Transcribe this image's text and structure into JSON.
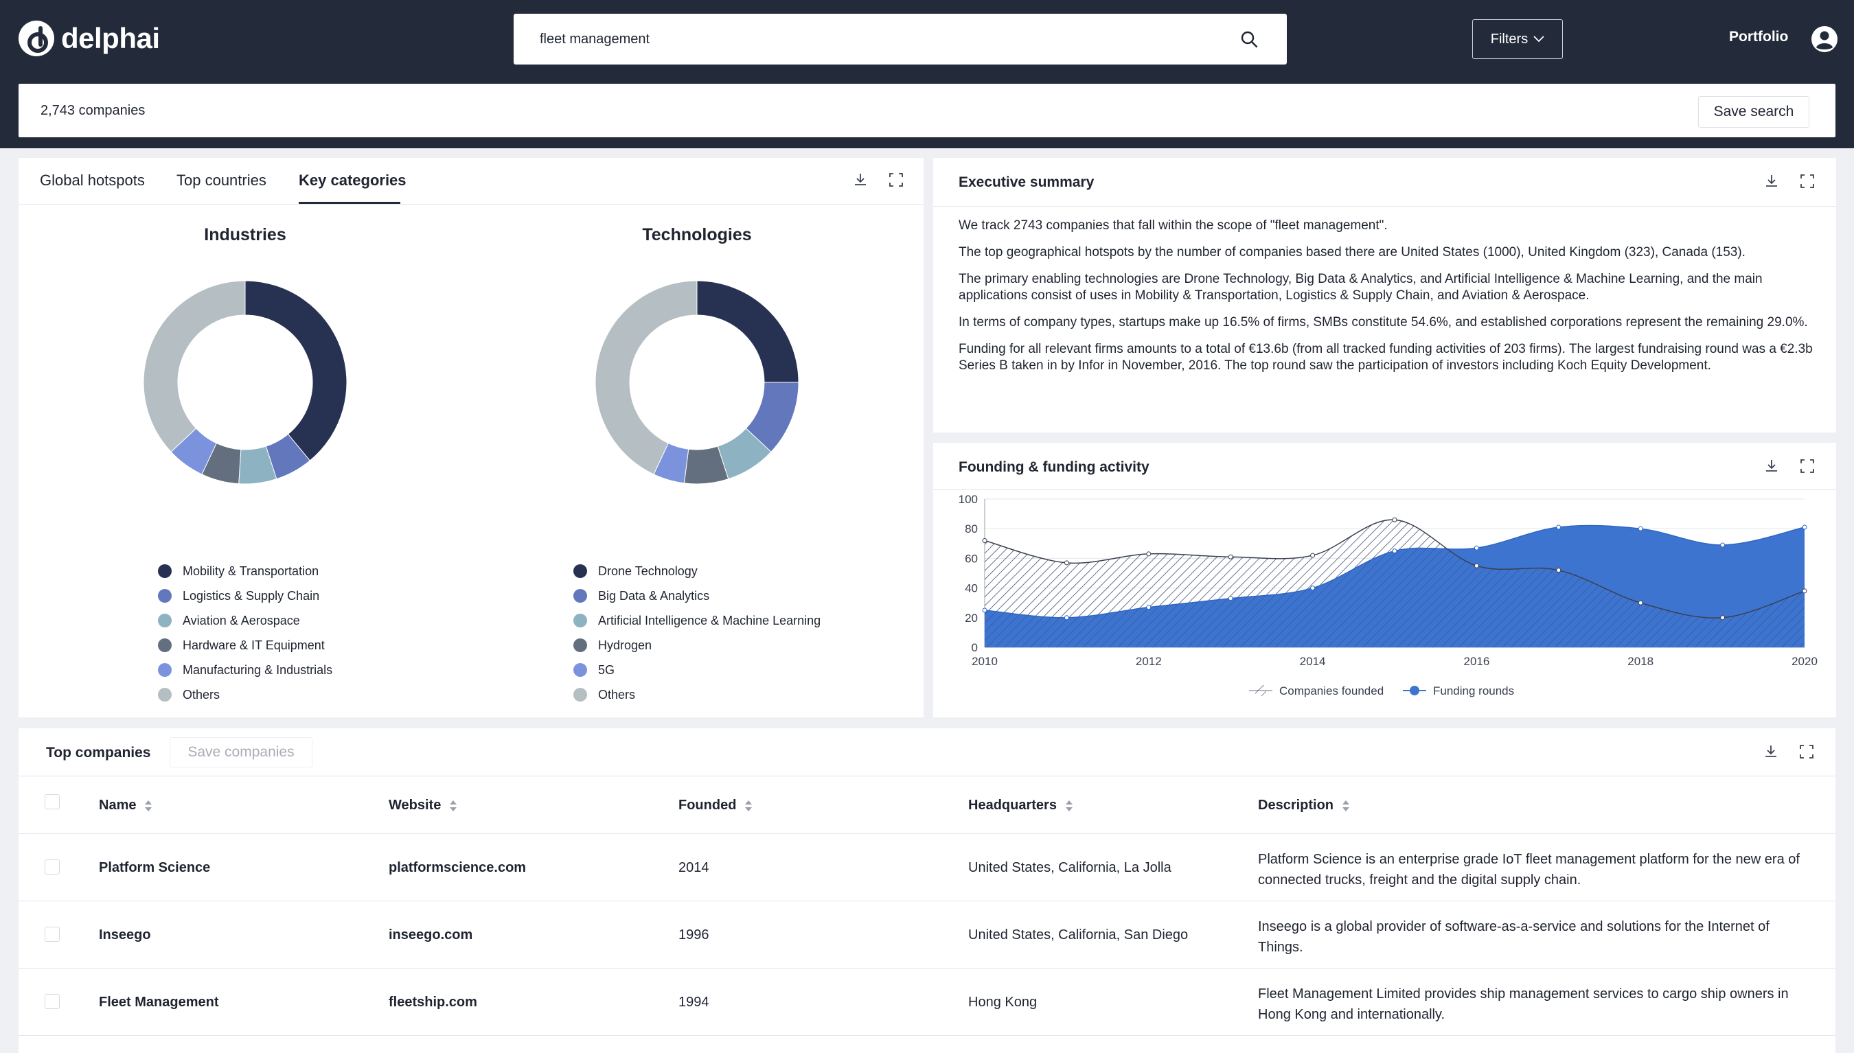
{
  "app": {
    "logo_text": "delphai"
  },
  "search": {
    "query": "fleet management",
    "placeholder": ""
  },
  "header": {
    "filters_label": "Filters",
    "portfolio_label": "Portfolio"
  },
  "results": {
    "count_text": "2,743 companies",
    "save_search_label": "Save search"
  },
  "categories_panel": {
    "tabs": [
      "Global hotspots",
      "Top countries",
      "Key categories"
    ],
    "active_tab": "Key categories",
    "industries": {
      "title": "Industries",
      "legend": [
        "Mobility & Transportation",
        "Logistics & Supply Chain",
        "Aviation & Aerospace",
        "Hardware & IT Equipment",
        "Manufacturing & Industrials",
        "Others"
      ],
      "colors": [
        "#273152",
        "#6377bd",
        "#8db2c2",
        "#636e7e",
        "#7b93dd",
        "#b5bec3"
      ],
      "values": [
        39,
        6,
        6,
        6,
        6,
        37
      ]
    },
    "technologies": {
      "title": "Technologies",
      "legend": [
        "Drone Technology",
        "Big Data & Analytics",
        "Artificial Intelligence & Machine Learning",
        "Hydrogen",
        "5G",
        "Others"
      ],
      "colors": [
        "#273152",
        "#6377bd",
        "#8db2c2",
        "#636e7e",
        "#7b93dd",
        "#b5bec3"
      ],
      "values": [
        25,
        12,
        8,
        7,
        5,
        43
      ]
    }
  },
  "executive_summary": {
    "title": "Executive summary",
    "paragraphs": [
      "We track 2743 companies that fall within the scope of \"fleet management\".",
      "The top geographical hotspots by the number of companies based there are United States (1000), United Kingdom (323), Canada (153).",
      "The primary enabling technologies are Drone Technology, Big Data & Analytics, and Artificial Intelligence & Machine Learning, and the main applications consist of uses in Mobility & Transportation, Logistics & Supply Chain, and Aviation & Aerospace.",
      "In terms of company types, startups make up 16.5% of firms, SMBs constitute 54.6%, and established corporations represent the remaining 29.0%.",
      "Funding for all relevant firms amounts to a total of €13.6b (from all tracked funding activities of 203 firms). The largest fundraising round was a €2.3b Series B taken in by Infor in November, 2016. The top round saw the participation of investors including Koch Equity Development."
    ]
  },
  "funding_chart": {
    "title": "Founding & funding activity",
    "chart_data": {
      "type": "area",
      "x": [
        2010,
        2011,
        2012,
        2013,
        2014,
        2015,
        2016,
        2017,
        2018,
        2019,
        2020
      ],
      "xticks": [
        2010,
        2012,
        2014,
        2016,
        2018,
        2020
      ],
      "yticks": [
        0,
        20,
        40,
        60,
        80,
        100
      ],
      "ylim": [
        0,
        100
      ],
      "series": [
        {
          "name": "Companies founded",
          "values": [
            72,
            57,
            63,
            61,
            62,
            86,
            55,
            52,
            30,
            20,
            38
          ],
          "style": "hatched"
        },
        {
          "name": "Funding rounds",
          "values": [
            25,
            20,
            27,
            33,
            40,
            65,
            67,
            81,
            80,
            69,
            81
          ],
          "color": "#3d74cf"
        }
      ]
    }
  },
  "companies": {
    "title": "Top companies",
    "save_label": "Save companies",
    "columns": [
      "Name",
      "Website",
      "Founded",
      "Headquarters",
      "Description"
    ],
    "rows": [
      {
        "name": "Platform Science",
        "website": "platformscience.com",
        "founded": "2014",
        "hq": "United States, California, La Jolla",
        "description": "Platform Science is an enterprise grade IoT fleet management platform for the new era of connected trucks, freight and the digital supply chain."
      },
      {
        "name": "Inseego",
        "website": "inseego.com",
        "founded": "1996",
        "hq": "United States, California, San Diego",
        "description": "Inseego is a global provider of software-as-a-service and solutions for the Internet of Things."
      },
      {
        "name": "Fleet Management",
        "website": "fleetship.com",
        "founded": "1994",
        "hq": "Hong Kong",
        "description": "Fleet Management Limited provides ship management services to cargo ship owners in Hong Kong and internationally."
      }
    ]
  }
}
